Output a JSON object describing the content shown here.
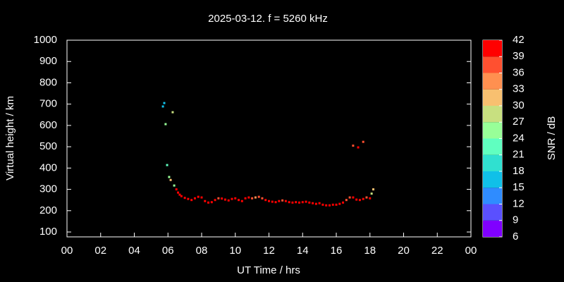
{
  "chart_data": {
    "type": "scatter",
    "title": "2025-03-12. f = 5260 kHz",
    "xlabel": "UT Time / hrs",
    "ylabel": "Virtual height / km",
    "colorbar_label": "SNR / dB",
    "xlim": [
      0,
      24
    ],
    "ylim": [
      77,
      1000
    ],
    "xticks": [
      {
        "value": 0,
        "label": "00"
      },
      {
        "value": 2,
        "label": "02"
      },
      {
        "value": 4,
        "label": "04"
      },
      {
        "value": 6,
        "label": "06"
      },
      {
        "value": 8,
        "label": "08"
      },
      10,
      12,
      14,
      16,
      18,
      20,
      22,
      {
        "value": 24,
        "label": "00"
      }
    ],
    "yticks": [
      100,
      200,
      300,
      400,
      500,
      600,
      700,
      800,
      900,
      1000
    ],
    "clim": [
      6,
      42
    ],
    "cticks": [
      6,
      9,
      12,
      15,
      18,
      21,
      24,
      27,
      30,
      33,
      36,
      39,
      42
    ],
    "colorscale": [
      "#8000ff",
      "#5a50ff",
      "#2f8cff",
      "#10c0e8",
      "#30e0d0",
      "#60ffc0",
      "#98ff98",
      "#c8e080",
      "#f8c070",
      "#ff9050",
      "#ff5030",
      "#ff0000"
    ],
    "x": [
      5.7,
      5.78,
      6.28,
      5.86,
      5.95,
      6.07,
      6.16,
      6.37,
      6.5,
      6.6,
      6.7,
      6.8,
      7.0,
      7.2,
      7.4,
      7.6,
      7.8,
      8.0,
      8.2,
      8.4,
      8.6,
      8.8,
      9.0,
      9.2,
      9.4,
      9.6,
      9.8,
      10.0,
      10.2,
      10.4,
      10.6,
      10.8,
      11.0,
      11.2,
      11.4,
      11.6,
      11.8,
      12.0,
      12.2,
      12.4,
      12.6,
      12.8,
      13.0,
      13.2,
      13.4,
      13.6,
      13.8,
      14.0,
      14.2,
      14.4,
      14.6,
      14.8,
      15.0,
      15.2,
      15.4,
      15.6,
      15.8,
      16.0,
      16.2,
      16.4,
      16.6,
      16.8,
      17.0,
      17.2,
      17.4,
      17.6,
      17.8,
      18.0,
      18.1,
      18.2,
      17.0,
      17.3,
      17.6
    ],
    "values": [
      689,
      705,
      662,
      606,
      414,
      358,
      344,
      318,
      300,
      285,
      275,
      268,
      260,
      255,
      250,
      258,
      265,
      262,
      245,
      238,
      240,
      250,
      258,
      257,
      252,
      248,
      255,
      258,
      250,
      245,
      258,
      262,
      258,
      262,
      265,
      258,
      250,
      245,
      242,
      240,
      245,
      248,
      245,
      240,
      238,
      240,
      238,
      240,
      242,
      238,
      235,
      232,
      235,
      228,
      225,
      225,
      228,
      228,
      232,
      238,
      250,
      262,
      262,
      252,
      250,
      255,
      262,
      258,
      280,
      300,
      505,
      497,
      523
    ],
    "snr": [
      15,
      16,
      27,
      24,
      21,
      24,
      30,
      25,
      40,
      40,
      40,
      40,
      40,
      40,
      40,
      40,
      40,
      40,
      40,
      40,
      40,
      40,
      38,
      40,
      40,
      40,
      40,
      40,
      40,
      40,
      40,
      40,
      37,
      34,
      36,
      37,
      40,
      40,
      40,
      40,
      40,
      37,
      40,
      40,
      40,
      40,
      40,
      40,
      40,
      40,
      40,
      40,
      40,
      40,
      40,
      40,
      40,
      40,
      40,
      40,
      38,
      37,
      40,
      40,
      40,
      40,
      38,
      40,
      27,
      30,
      37,
      40,
      37
    ]
  }
}
